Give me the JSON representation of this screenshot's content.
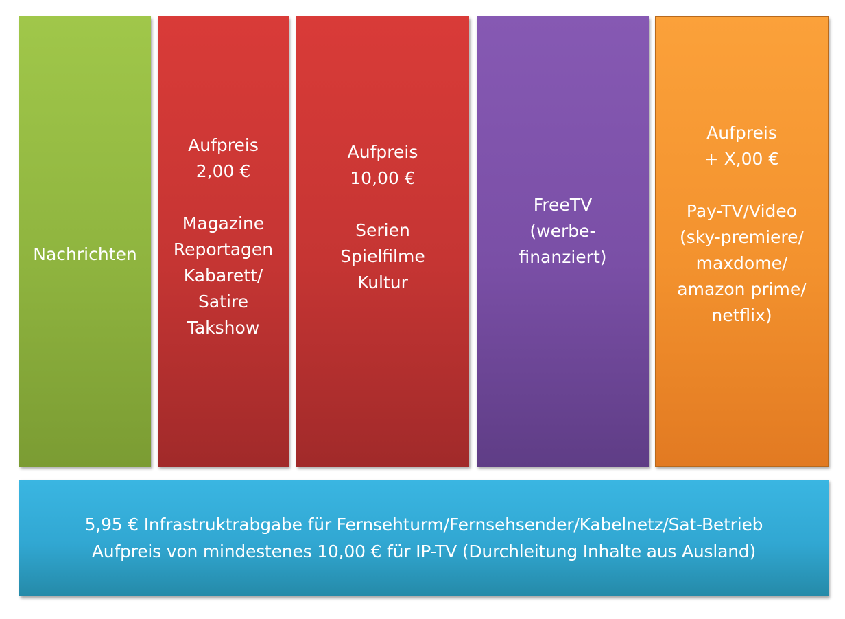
{
  "columns": [
    {
      "id": "nachrichten",
      "text": "Nachrichten",
      "color": "#8fb43f"
    },
    {
      "id": "magazine",
      "text": "Aufpreis\n2,00 €\n\nMagazine\nReportagen\nKabarett/\nSatire\nTakshow",
      "color": "#c53533"
    },
    {
      "id": "serien",
      "text": "Aufpreis\n10,00 €\n\nSerien\nSpielfilme\nKultur",
      "color": "#c53533"
    },
    {
      "id": "freetv",
      "text": "FreeTV\n(werbe-\nfinanziert)",
      "color": "#7a4fa6"
    },
    {
      "id": "paytv",
      "text": "Aufpreis\n+ X,00 €\n\nPay-TV/Video\n(sky-premiere/\nmaxdome/\namazon prime/\nnetflix)",
      "color": "#f3922e"
    }
  ],
  "bottom": {
    "text": "5,95 € Infrastruktrabgabe für Fernsehturm/Fernsehsender/Kabelnetz/Sat-Betrieb\nAufpreis von mindestenes 10,00 € für IP-TV (Durchleitung Inhalte aus Ausland)",
    "color": "#31a7d2"
  }
}
